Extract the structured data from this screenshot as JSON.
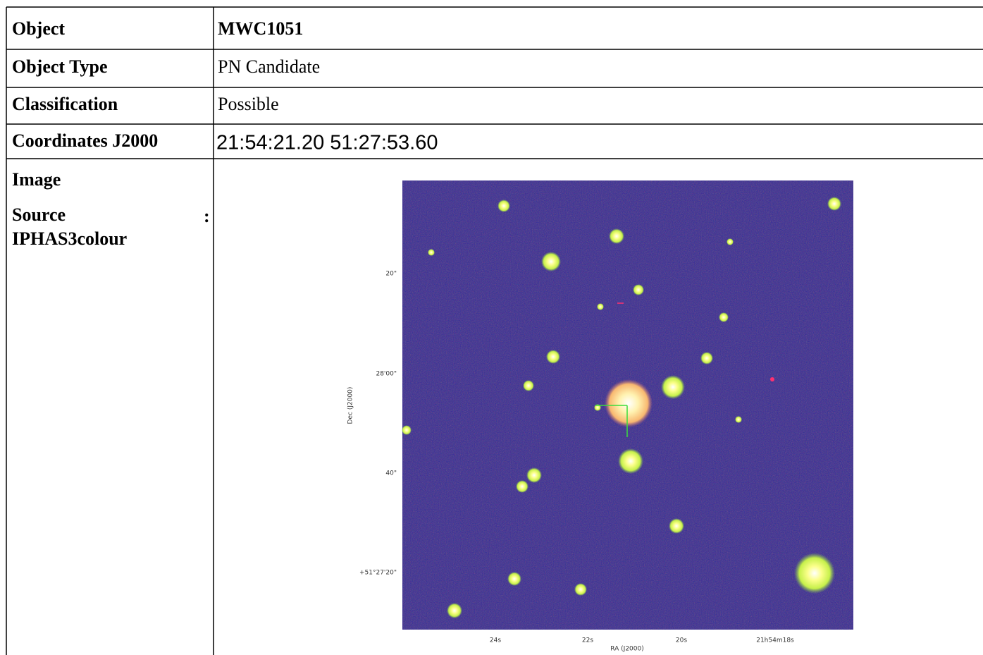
{
  "table": {
    "rows": [
      [
        "Object",
        "MWC1051"
      ],
      [
        "Object Type",
        "PN Candidate"
      ],
      [
        "Classification",
        "Possible"
      ],
      [
        "Coordinates J2000",
        "21:54:21.20 51:27:53.60"
      ]
    ],
    "image_row": {
      "label": "Image",
      "source_label": "Source",
      "source_separator": ":",
      "source": "IPHAS3colour",
      "image": {
        "y_ticks": [
          "20\"",
          "28'00\"",
          "40\"",
          "+51°27'20\""
        ],
        "x_ticks": [
          "24s",
          "22s",
          "20s",
          "21h54m18s"
        ],
        "x_axis_label": "RA (J2000)",
        "y_axis_label": "Dec (J2000)"
      }
    }
  }
}
